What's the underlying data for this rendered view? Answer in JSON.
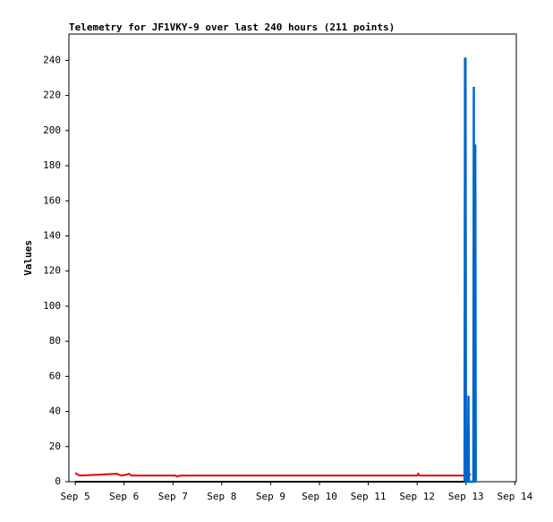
{
  "chart_data": {
    "type": "line",
    "title": "Telemetry for JF1VKY-9 over last 240 hours (211 points)",
    "y_label": "Values",
    "xlim": [
      4.87,
      14.03
    ],
    "xticks": [
      {
        "value": 5,
        "label": "Sep 5"
      },
      {
        "value": 6,
        "label": "Sep 6"
      },
      {
        "value": 7,
        "label": "Sep 7"
      },
      {
        "value": 8,
        "label": "Sep 8"
      },
      {
        "value": 9,
        "label": "Sep 9"
      },
      {
        "value": 10,
        "label": "Sep 10"
      },
      {
        "value": 11,
        "label": "Sep 11"
      },
      {
        "value": 12,
        "label": "Sep 12"
      },
      {
        "value": 13,
        "label": "Sep 13"
      },
      {
        "value": 14,
        "label": "Sep 14"
      }
    ],
    "ylim": [
      0,
      255
    ],
    "yticks": [
      0,
      20,
      40,
      60,
      80,
      100,
      120,
      140,
      160,
      180,
      200,
      220,
      240
    ],
    "series": [
      {
        "color": "#000000",
        "x": [
          5.0,
          13.1
        ],
        "values": [
          0,
          0
        ]
      },
      {
        "color": "#e00000",
        "x": [
          5.0,
          5.05,
          5.1,
          5.5,
          5.85,
          5.9,
          5.95,
          6.05,
          6.1,
          6.15,
          7.05,
          7.08,
          7.15,
          12.0,
          12.02,
          12.05,
          12.95,
          13.1
        ],
        "values": [
          5,
          4,
          3.5,
          4,
          4.5,
          4,
          3.5,
          4,
          4.5,
          3.5,
          3.5,
          3,
          3.5,
          3.5,
          4.5,
          3.5,
          3.5,
          4
        ]
      },
      {
        "color": "#0066cc",
        "x": [
          12.97,
          12.98,
          12.99,
          13.0,
          13.02,
          13.03,
          13.04,
          13.05,
          13.06,
          13.15,
          13.16,
          13.17,
          13.18,
          13.19,
          13.2
        ],
        "values": [
          0,
          241,
          241,
          0,
          0,
          32,
          0,
          49,
          0,
          0,
          225,
          0,
          0,
          192,
          0
        ]
      }
    ]
  }
}
